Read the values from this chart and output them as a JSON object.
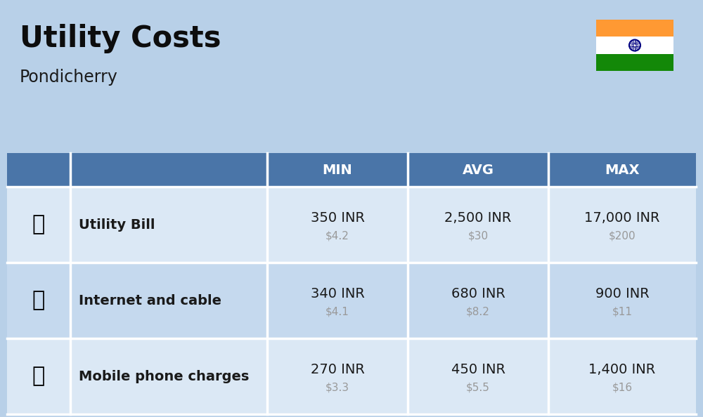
{
  "title": "Utility Costs",
  "subtitle": "Pondicherry",
  "background_color": "#b8d0e8",
  "header_bg_color": "#4a75a8",
  "header_text_color": "#ffffff",
  "row_bg_color_1": "#dbe8f5",
  "row_bg_color_2": "#c5d9ee",
  "table_line_color": "#ffffff",
  "col_headers": [
    "MIN",
    "AVG",
    "MAX"
  ],
  "rows": [
    {
      "label": "Utility Bill",
      "min_inr": "350 INR",
      "min_usd": "$4.2",
      "avg_inr": "2,500 INR",
      "avg_usd": "$30",
      "max_inr": "17,000 INR",
      "max_usd": "$200"
    },
    {
      "label": "Internet and cable",
      "min_inr": "340 INR",
      "min_usd": "$4.1",
      "avg_inr": "680 INR",
      "avg_usd": "$8.2",
      "max_inr": "900 INR",
      "max_usd": "$11"
    },
    {
      "label": "Mobile phone charges",
      "min_inr": "270 INR",
      "min_usd": "$3.3",
      "avg_inr": "450 INR",
      "avg_usd": "$5.5",
      "max_inr": "1,400 INR",
      "max_usd": "$16"
    }
  ],
  "flag_colors": [
    "#FF9933",
    "#FFFFFF",
    "#138808"
  ],
  "title_fontsize": 30,
  "subtitle_fontsize": 17,
  "header_fontsize": 14,
  "label_fontsize": 14,
  "value_fontsize": 14,
  "usd_fontsize": 11,
  "usd_color": "#999999",
  "inr_color": "#1a1a1a"
}
